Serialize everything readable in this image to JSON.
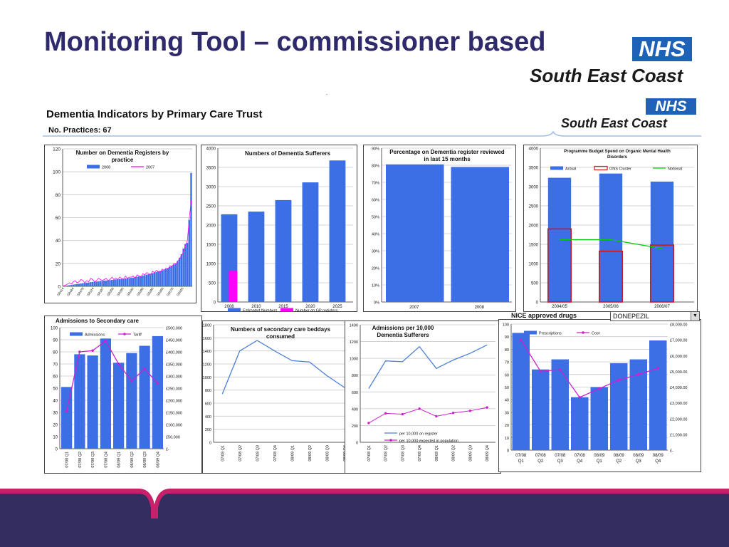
{
  "slide": {
    "title": "Monitoring Tool – commissioner based",
    "dot": "."
  },
  "logos": [
    {
      "badge": "NHS",
      "region": "South East Coast"
    },
    {
      "badge": "NHS",
      "region": "South East Coast"
    }
  ],
  "dashboard": {
    "title": "Dementia Indicators by Primary Care Trust",
    "subtitle": "No. Practices: 67",
    "nice_label": "NICE approved drugs",
    "dropdown_value": "DONEPEZIL"
  },
  "colors": {
    "title": "#2e2a6b",
    "bar_blue": "#3c6ee6",
    "magenta": "#ff00ff",
    "line_magenta": "#cc22cc",
    "line_blue": "#4a7fd8",
    "green": "#00cc00",
    "red_outline": "#cc1a1a",
    "footer_purple": "#342d60",
    "footer_pink": "#c8206a",
    "nhs_blue": "#1d62b7"
  },
  "chart_data": [
    {
      "id": "registers",
      "type": "bar",
      "title": "Number on Dementia Registers by practice",
      "legend": [
        "2008",
        "2007"
      ],
      "ylim": [
        0,
        120
      ],
      "yticks": [
        "0",
        "20",
        "40",
        "60",
        "80",
        "100",
        "120"
      ],
      "xticks": [
        "G8414",
        "G8444",
        "G8478",
        "G8124",
        "G8197",
        "G8356",
        "G8295",
        "G8242",
        "G8296",
        "G8280",
        "G8266",
        "G8578",
        "G8425"
      ],
      "n_practices": 67,
      "series": [
        {
          "name": "2008",
          "values": [
            0.2,
            0.4,
            0.7,
            1,
            1.2,
            1.5,
            1.8,
            2,
            2.2,
            2.5,
            2.8,
            3,
            3.2,
            3.4,
            3.6,
            3.8,
            4,
            4.2,
            4.4,
            4.6,
            4.8,
            5,
            5,
            5.2,
            5.4,
            5.6,
            5.8,
            6,
            6.1,
            6.2,
            6.4,
            6.6,
            6.8,
            7,
            7.2,
            7.4,
            7.6,
            8,
            8.3,
            8.6,
            9,
            9.4,
            9.8,
            10.2,
            10.6,
            11,
            11.5,
            12,
            12.5,
            13,
            13.5,
            14,
            14.5,
            15,
            16,
            17,
            18,
            19,
            20,
            22,
            25,
            28,
            33,
            37,
            38,
            58,
            99
          ]
        },
        {
          "name": "2007",
          "values": [
            0.5,
            1,
            2,
            3,
            2,
            4,
            5,
            3,
            4,
            6,
            5,
            3,
            5,
            4,
            7,
            6,
            4,
            5,
            7,
            6,
            5,
            6,
            7,
            5,
            6,
            8,
            6,
            7,
            6,
            8,
            7,
            6,
            9,
            7,
            8,
            8,
            9,
            7,
            10,
            9,
            8,
            11,
            10,
            12,
            11,
            10,
            13,
            12,
            14,
            13,
            12,
            15,
            14,
            16,
            15,
            18,
            17,
            20,
            19,
            22,
            24,
            27,
            30,
            35,
            40,
            60,
            75
          ]
        }
      ]
    },
    {
      "id": "sufferers",
      "type": "bar",
      "title": "Numbers of Dementia Sufferers",
      "categories": [
        "2008",
        "2010",
        "2015",
        "2020",
        "2025"
      ],
      "ylim": [
        0,
        4000
      ],
      "yticks": [
        "0",
        "500",
        "1000",
        "1500",
        "2000",
        "2500",
        "3000",
        "3500",
        "4000"
      ],
      "legend": [
        "Estimated Numbers",
        "Number on GP registers"
      ],
      "series": [
        {
          "name": "Estimated Numbers",
          "values": [
            2280,
            2350,
            2650,
            3110,
            3680
          ]
        },
        {
          "name": "Number on GP registers",
          "values": [
            810,
            null,
            null,
            null,
            null
          ]
        }
      ]
    },
    {
      "id": "reviewed",
      "type": "bar",
      "title": "Percentage on Dementia register reviewed in last 15 months",
      "categories": [
        "2007",
        "2008"
      ],
      "ylim": [
        0,
        90
      ],
      "yticks": [
        "0%",
        "10%",
        "20%",
        "30%",
        "40%",
        "50%",
        "60%",
        "70%",
        "80%",
        "90%"
      ],
      "values": [
        80.5,
        79
      ]
    },
    {
      "id": "budget",
      "type": "bar",
      "title": "Programme Budget Spend on Organic Mental Health Disorders",
      "categories": [
        "2004/05",
        "2005/06",
        "2006/07"
      ],
      "ylim": [
        0,
        4000
      ],
      "yticks": [
        "0",
        "500",
        "1000",
        "1500",
        "2000",
        "2500",
        "3000",
        "3500",
        "4000"
      ],
      "legend": [
        "Actual",
        "ONS Cluster",
        "Notional"
      ],
      "series": [
        {
          "name": "Actual",
          "values": [
            3230,
            3340,
            3130
          ]
        },
        {
          "name": "ONS Cluster",
          "values": [
            1900,
            1320,
            1480
          ]
        },
        {
          "name": "Notional",
          "values": [
            1620,
            1620,
            1390
          ]
        }
      ]
    },
    {
      "id": "admissions",
      "type": "bar",
      "title": "Admissions to Secondary care",
      "categories": [
        "07/08 Q1",
        "07/08 Q2",
        "07/08 Q3",
        "07/08 Q4",
        "08/09 Q1",
        "08/09 Q2",
        "08/09 Q3",
        "08/09 Q4"
      ],
      "ylim": [
        0,
        100
      ],
      "yticks": [
        "0",
        "10",
        "20",
        "30",
        "40",
        "50",
        "60",
        "70",
        "80",
        "90",
        "100"
      ],
      "y2ticks": [
        "£-",
        "£50,000",
        "£100,000",
        "£150,000",
        "£200,000",
        "£250,000",
        "£300,000",
        "£350,000",
        "£400,000",
        "£450,000",
        "£500,000"
      ],
      "y2lim": [
        0,
        500000
      ],
      "legend": [
        "Admissions",
        "Tariff"
      ],
      "series": [
        {
          "name": "Admissions",
          "values": [
            51,
            78,
            77,
            91,
            71,
            79,
            85,
            93
          ]
        },
        {
          "name": "Tariff",
          "values": [
            155000,
            400000,
            405000,
            445000,
            350000,
            280000,
            330000,
            270000
          ],
          "axis": "y2"
        }
      ]
    },
    {
      "id": "beddays",
      "type": "line",
      "title": "Numbers of secondary care beddays consumed",
      "categories": [
        "07/08 Q1",
        "07/08 Q2",
        "07/08 Q3",
        "07/08 Q4",
        "08/09 Q1",
        "08/09 Q2",
        "08/09 Q3",
        "08/09 Q4"
      ],
      "ylim": [
        0,
        1800
      ],
      "yticks": [
        "0",
        "200",
        "400",
        "600",
        "800",
        "1000",
        "1200",
        "1400",
        "1600",
        "1800"
      ],
      "values": [
        740,
        1400,
        1560,
        1400,
        1250,
        1230,
        1020,
        840
      ]
    },
    {
      "id": "per10k",
      "type": "line",
      "title": "Admissions per 10,000 Dementia Sufferers",
      "categories": [
        "07/08 Q1",
        "07/08 Q2",
        "07/08 Q3",
        "07/08 Q4",
        "08/09 Q1",
        "08/09 Q2",
        "08/09 Q3",
        "08/09 Q4"
      ],
      "ylim": [
        0,
        1400
      ],
      "yticks": [
        "0",
        "200",
        "400",
        "600",
        "800",
        "1000",
        "1200",
        "1400"
      ],
      "legend": [
        "per 10,000 on register",
        "per 10,000 expected in population"
      ],
      "series": [
        {
          "name": "per 10,000 on register",
          "values": [
            640,
            970,
            960,
            1140,
            880,
            980,
            1060,
            1160
          ]
        },
        {
          "name": "per 10,000 expected in population",
          "values": [
            230,
            345,
            335,
            400,
            310,
            350,
            375,
            415
          ]
        }
      ]
    },
    {
      "id": "prescriptions",
      "type": "bar",
      "title": "",
      "categories": [
        "07/08 Q1",
        "07/08 Q2",
        "07/08 Q3",
        "07/08 Q4",
        "08/09 Q1",
        "08/09 Q2",
        "08/09 Q3",
        "08/09 Q4"
      ],
      "ylim": [
        0,
        100
      ],
      "yticks": [
        "0",
        "10",
        "20",
        "30",
        "40",
        "50",
        "60",
        "70",
        "80",
        "90",
        "100"
      ],
      "y2ticks": [
        "£-",
        "£1,000.00",
        "£2,000.00",
        "£3,000.00",
        "£4,000.00",
        "£5,000.00",
        "£6,000.00",
        "£7,000.00",
        "£8,000.00"
      ],
      "y2lim": [
        0,
        8000
      ],
      "legend": [
        "Prescriptions",
        "Cost"
      ],
      "series": [
        {
          "name": "Prescriptions",
          "values": [
            93,
            64,
            72,
            42,
            50,
            69,
            72,
            87
          ]
        },
        {
          "name": "Cost",
          "values": [
            7000,
            5000,
            5100,
            3350,
            3900,
            4450,
            4800,
            5200
          ],
          "axis": "y2"
        }
      ]
    }
  ]
}
